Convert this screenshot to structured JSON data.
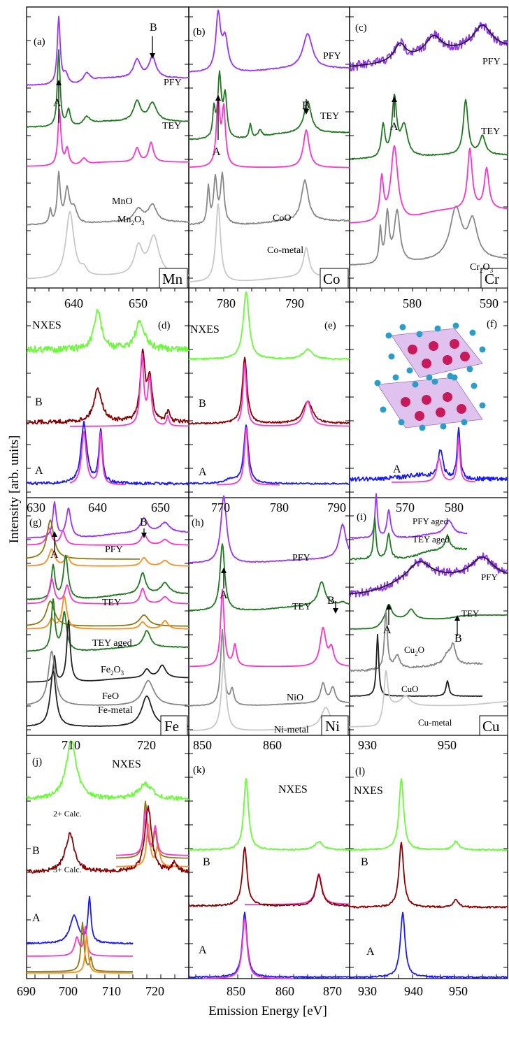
{
  "figure": {
    "ylabel": "Intensity [arb. units]",
    "xlabel": "Emission Energy [eV]"
  },
  "colors": {
    "PFY": "#9933ff",
    "TEY": "#1f7a1f",
    "model": "#ff33cc",
    "ref_dark": "#888888",
    "ref_light": "#c8c8c8",
    "NXES": "#66ff33",
    "B": "#8b0000",
    "A": "#1a1aff",
    "calc2": "#8a7a10",
    "calc3": "#ff8c1a",
    "fit": "#222222"
  },
  "chart_data": [
    {
      "panel": "a",
      "type": "line",
      "element": "Mn",
      "labels": [
        "(a)",
        "PFY",
        "TEY",
        "A",
        "B",
        "MnO",
        "Mn2O3"
      ],
      "series": [
        "PFY",
        "TEY",
        "model",
        "MnO",
        "Mn2O3"
      ]
    },
    {
      "panel": "b",
      "type": "line",
      "element": "Co",
      "labels": [
        "(b)",
        "PFY",
        "TEY",
        "A",
        "B",
        "CoO",
        "Co-metal"
      ],
      "series": [
        "PFY",
        "TEY",
        "model",
        "CoO",
        "Co-metal"
      ]
    },
    {
      "panel": "c",
      "type": "line",
      "element": "Cr",
      "labels": [
        "(c)",
        "PFY",
        "TEY",
        "A",
        "Cr2O3"
      ],
      "series": [
        "PFY",
        "TEY",
        "model",
        "Cr2O3"
      ]
    },
    {
      "panel": "d",
      "type": "line",
      "element": "Mn",
      "xticks": [
        640,
        650
      ],
      "labels": [
        "(d)",
        "NXES",
        "B",
        "A"
      ],
      "series": [
        "NXES",
        "B",
        "A"
      ]
    },
    {
      "panel": "e",
      "type": "line",
      "element": "Co",
      "xticks": [
        780,
        790
      ],
      "labels": [
        "(e)",
        "NXES",
        "B",
        "A"
      ],
      "series": [
        "NXES",
        "B",
        "A"
      ]
    },
    {
      "panel": "f",
      "type": "line",
      "element": "Cr",
      "xticks": [
        580,
        590
      ],
      "labels": [
        "(f)",
        "A"
      ],
      "series": [
        "A"
      ]
    },
    {
      "panel": "g",
      "type": "line",
      "element": "Fe",
      "xticks": [
        630,
        640,
        650
      ],
      "labels": [
        "(g)",
        "A",
        "B",
        "PFY",
        "TEY",
        "TEY aged",
        "Fe2O3",
        "FeO",
        "Fe-metal"
      ],
      "series": [
        "PFY",
        "TEY",
        "TEY aged",
        "Fe2O3",
        "FeO",
        "Fe-metal"
      ]
    },
    {
      "panel": "h",
      "type": "line",
      "element": "Ni",
      "xticks": [
        770,
        780,
        790
      ],
      "labels": [
        "(h)",
        "PFY",
        "TEY",
        "A",
        "B",
        "NiO",
        "Ni-metal"
      ],
      "series": [
        "PFY",
        "TEY",
        "model",
        "NiO",
        "Ni-metal"
      ]
    },
    {
      "panel": "i",
      "type": "line",
      "element": "Cu",
      "xticks": [
        570,
        580
      ],
      "labels": [
        "(i)",
        "PFY aged",
        "TEY aged",
        "PFY",
        "TEY",
        "A",
        "B",
        "Cu2O",
        "CuO",
        "Cu-metal"
      ],
      "series": [
        "PFY aged",
        "TEY aged",
        "PFY",
        "TEY",
        "Cu2O",
        "CuO",
        "Cu-metal"
      ]
    },
    {
      "panel": "j",
      "type": "line",
      "element": "Fe",
      "xticks": [
        710,
        720
      ],
      "xaxis": [
        690,
        700,
        710,
        720
      ],
      "labels": [
        "(j)",
        "NXES",
        "B",
        "A",
        "2+ Calc.",
        "3+ Calc."
      ],
      "series": [
        "NXES",
        "B",
        "A",
        "2+ Calc.",
        "3+ Calc."
      ]
    },
    {
      "panel": "k",
      "type": "line",
      "element": "Ni",
      "xticks": [
        850,
        860
      ],
      "xaxis": [
        850,
        860,
        870
      ],
      "labels": [
        "(k)",
        "NXES",
        "B",
        "A"
      ],
      "series": [
        "NXES",
        "B",
        "A"
      ]
    },
    {
      "panel": "l",
      "type": "line",
      "element": "Cu",
      "xticks": [
        930,
        950
      ],
      "xaxis": [
        930,
        940,
        950
      ],
      "labels": [
        "(l)",
        "NXES",
        "B",
        "A"
      ],
      "series": [
        "NXES",
        "B",
        "A"
      ]
    }
  ],
  "text": {
    "a": {
      "tag": "(a)",
      "pfy": "PFY",
      "tey": "TEY",
      "A": "A",
      "B": "B",
      "ref1": "MnO",
      "ref2": "Mn",
      "ref2sub": "2",
      "ref2b": "O",
      "ref2sub2": "3"
    },
    "b": {
      "tag": "(b)",
      "pfy": "PFY",
      "tey": "TEY",
      "A": "A",
      "B": "B",
      "ref1": "CoO",
      "ref2": "Co-metal"
    },
    "c": {
      "tag": "(c)",
      "pfy": "PFY",
      "tey": "TEY",
      "A": "A",
      "ref1": "Cr",
      "ref1sub": "2",
      "ref1b": "O",
      "ref1sub2": "3"
    },
    "d": {
      "tag": "(d)",
      "nxes": "NXES",
      "B": "B",
      "A": "A",
      "t1": "640",
      "t2": "650",
      "el": "Mn"
    },
    "e": {
      "tag": "(e)",
      "nxes": "NXES",
      "B": "B",
      "A": "A",
      "t1": "780",
      "t2": "790",
      "el": "Co"
    },
    "f": {
      "tag": "(f)",
      "A": "A",
      "t1": "580",
      "t2": "590",
      "el": "Cr"
    },
    "g": {
      "tag": "(g)",
      "A": "A",
      "B": "B",
      "pfy": "PFY",
      "tey": "TEY",
      "teyaged": "TEY aged",
      "ref1": "Fe",
      "ref1sub": "2",
      "ref1b": "O",
      "ref1sub2": "3",
      "ref2": "FeO",
      "ref3": "Fe-metal",
      "t1": "630",
      "t2": "640",
      "t3": "650",
      "el": "Fe"
    },
    "h": {
      "tag": "(h)",
      "pfy": "PFY",
      "tey": "TEY",
      "A": "A",
      "B": "B",
      "ref1": "NiO",
      "ref2": "Ni-metal",
      "t1": "770",
      "t2": "780",
      "t3": "790",
      "el": "Ni"
    },
    "i": {
      "tag": "(i)",
      "pfyaged": "PFY aged",
      "teyaged": "TEY aged",
      "pfy": "PFY",
      "tey": "TEY",
      "A": "A",
      "B": "B",
      "ref1": "Cu",
      "ref1sub": "2",
      "ref1b": "O",
      "ref2": "CuO",
      "ref3": "Cu-metal",
      "t1": "570",
      "t2": "580",
      "el": "Cu"
    },
    "j": {
      "tag": "(j)",
      "nxes": "NXES",
      "B": "B",
      "A": "A",
      "c2": "2+ Calc.",
      "c3": "3+ Calc.",
      "t1": "710",
      "t2": "720",
      "x1": "690",
      "x2": "700",
      "x3": "710",
      "x4": "720"
    },
    "k": {
      "tag": "(k)",
      "nxes": "NXES",
      "B": "B",
      "A": "A",
      "t1": "850",
      "t2": "860",
      "x1": "850",
      "x2": "860",
      "x3": "870"
    },
    "l": {
      "tag": "(l)",
      "nxes": "NXES",
      "B": "B",
      "A": "A",
      "t1": "930",
      "t2": "950",
      "x1": "930",
      "x2": "940",
      "x3": "950"
    }
  }
}
